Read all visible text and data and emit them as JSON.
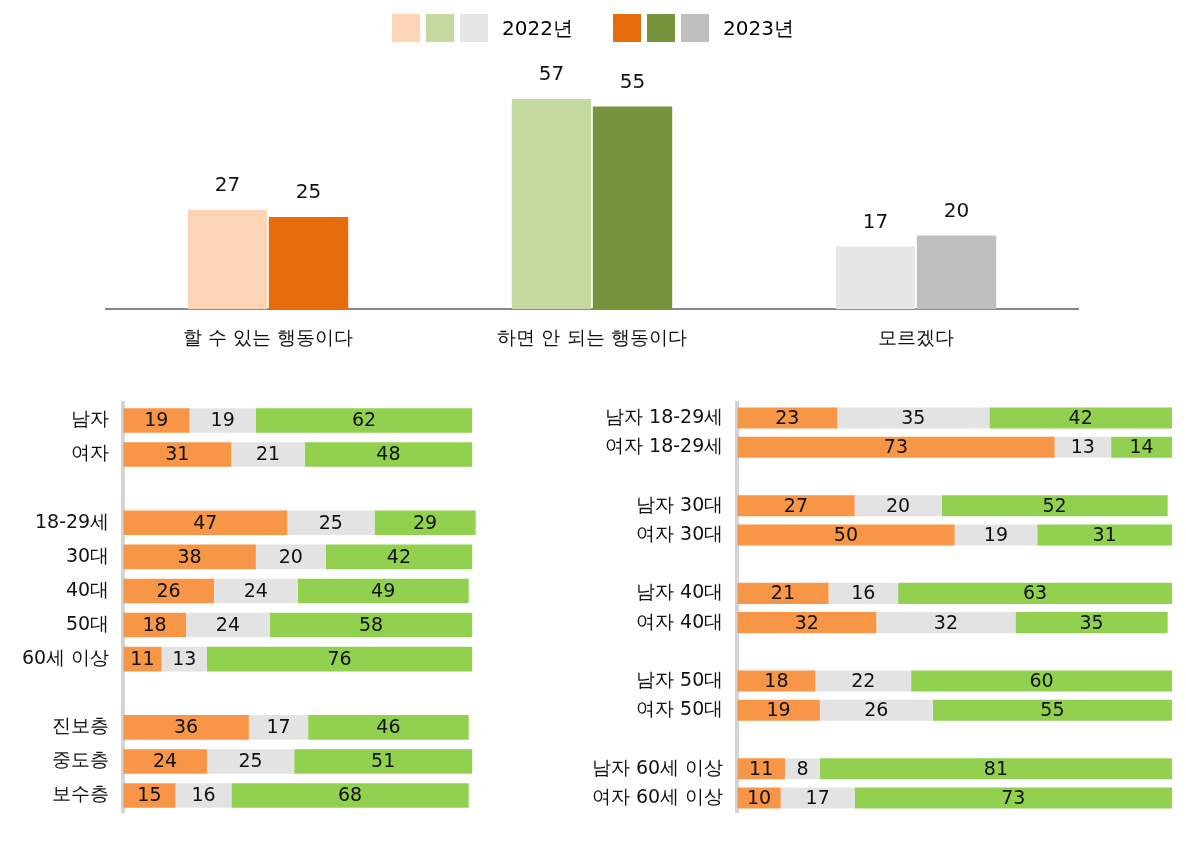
{
  "chart_data": [
    {
      "type": "bar",
      "categories": [
        "할 수 있는 행동이다",
        "하면 안 되는 행동이다",
        "모르겠다"
      ],
      "series": [
        {
          "name": "2022년",
          "colors": [
            "#fbd5b5",
            "#c5d89f",
            "#e6e6e6"
          ],
          "values": [
            27,
            57,
            17
          ]
        },
        {
          "name": "2023년",
          "colors": [
            "#e46c0a",
            "#77933c",
            "#bfbfbf"
          ],
          "values": [
            25,
            55,
            20
          ]
        }
      ],
      "data_labels": true,
      "legend": "top",
      "tick_labels": "x"
    },
    {
      "type": "bar",
      "orientation": "horizontal",
      "stacked": true,
      "categories": [
        "남자",
        "여자",
        null,
        "18-29세",
        "30대",
        "40대",
        "50대",
        "60세 이상",
        null,
        "진보층",
        "중도층",
        "보수층"
      ],
      "series": [
        {
          "color": "#f79646",
          "values": [
            19,
            31,
            null,
            47,
            38,
            26,
            18,
            11,
            null,
            36,
            24,
            15
          ]
        },
        {
          "color": "#e3e3e3",
          "values": [
            19,
            21,
            null,
            25,
            20,
            24,
            24,
            13,
            null,
            17,
            25,
            16
          ]
        },
        {
          "color": "#92d050",
          "values": [
            62,
            48,
            null,
            29,
            42,
            49,
            58,
            76,
            null,
            46,
            51,
            68
          ]
        }
      ],
      "data_labels": true,
      "tick_labels": "y"
    },
    {
      "type": "bar",
      "orientation": "horizontal",
      "stacked": true,
      "categories": [
        "남자 18-29세",
        "여자 18-29세",
        null,
        "남자 30대",
        "여자 30대",
        null,
        "남자 40대",
        "여자 40대",
        null,
        "남자 50대",
        "여자 50대",
        null,
        "남자 60세 이상",
        "여자 60세 이상"
      ],
      "series": [
        {
          "color": "#f79646",
          "values": [
            23,
            73,
            null,
            27,
            50,
            null,
            21,
            32,
            null,
            18,
            19,
            null,
            11,
            10
          ]
        },
        {
          "color": "#e3e3e3",
          "values": [
            35,
            13,
            null,
            20,
            19,
            null,
            16,
            32,
            null,
            22,
            26,
            null,
            8,
            17
          ]
        },
        {
          "color": "#92d050",
          "values": [
            42,
            14,
            null,
            52,
            31,
            null,
            63,
            35,
            null,
            60,
            55,
            null,
            81,
            73
          ]
        }
      ],
      "data_labels": true,
      "tick_labels": "y"
    }
  ]
}
